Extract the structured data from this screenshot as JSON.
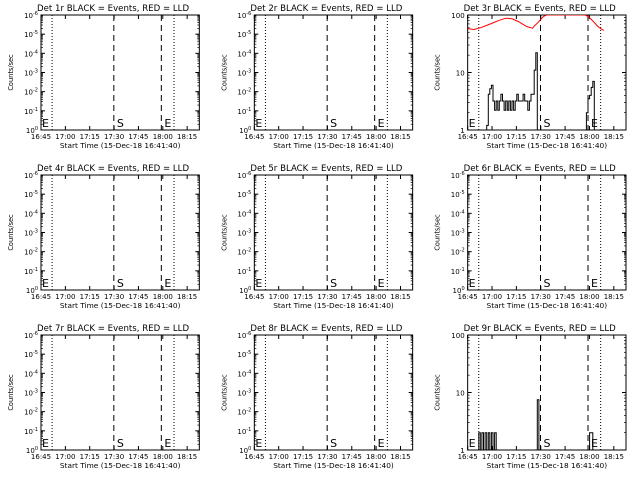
{
  "chart_data": [
    {
      "type": "line",
      "title": "Det 1r BLACK = Events, RED = LLD",
      "xlabel": "Start Time (15-Dec-18 16:41:40)",
      "ylabel": "Counts/sec",
      "x_ticks": [
        "16:45",
        "17:00",
        "17:15",
        "17:30",
        "17:45",
        "18:00",
        "18:15"
      ],
      "y_scale": "log",
      "y_ticks": [
        {
          "exp": "10",
          "sup": "0"
        },
        {
          "exp": "10",
          "sup": "-1"
        },
        {
          "exp": "10",
          "sup": "-2"
        },
        {
          "exp": "10",
          "sup": "-3"
        },
        {
          "exp": "10",
          "sup": "-4"
        },
        {
          "exp": "10",
          "sup": "-5"
        },
        {
          "exp": "10",
          "sup": "-6"
        }
      ],
      "ylim": [
        1,
        1000000
      ],
      "xlim": [
        0,
        100
      ],
      "dotted_lines_x": [
        7,
        84
      ],
      "dashed_lines_x": [
        46,
        76
      ],
      "markers": [
        {
          "label": "E",
          "x": 0
        },
        {
          "label": "S",
          "x": 46
        },
        {
          "label": "E",
          "x": 76
        }
      ],
      "series": []
    },
    {
      "type": "line",
      "title": "Det 2r BLACK = Events, RED = LLD",
      "xlabel": "Start Time (15-Dec-18 16:41:40)",
      "ylabel": "Counts/sec",
      "x_ticks": [
        "16:45",
        "17:00",
        "17:15",
        "17:30",
        "17:45",
        "18:00",
        "18:15"
      ],
      "y_scale": "log",
      "y_ticks": [
        {
          "exp": "10",
          "sup": "0"
        },
        {
          "exp": "10",
          "sup": "-1"
        },
        {
          "exp": "10",
          "sup": "-2"
        },
        {
          "exp": "10",
          "sup": "-3"
        },
        {
          "exp": "10",
          "sup": "-4"
        },
        {
          "exp": "10",
          "sup": "-5"
        },
        {
          "exp": "10",
          "sup": "-6"
        }
      ],
      "ylim": [
        1,
        1000000
      ],
      "xlim": [
        0,
        100
      ],
      "dotted_lines_x": [
        7,
        84
      ],
      "dashed_lines_x": [
        46,
        76
      ],
      "markers": [
        {
          "label": "E",
          "x": 0
        },
        {
          "label": "S",
          "x": 46
        },
        {
          "label": "E",
          "x": 76
        }
      ],
      "series": []
    },
    {
      "type": "line",
      "title": "Det 3r BLACK = Events, RED = LLD",
      "xlabel": "Start Time (15-Dec-18 16:41:40)",
      "ylabel": "Counts/sec",
      "x_ticks": [
        "16:45",
        "17:00",
        "17:15",
        "17:30",
        "17:45",
        "18:00",
        "18:15"
      ],
      "y_scale": "log",
      "y_ticks": [
        {
          "exp": "1",
          "sup": ""
        },
        {
          "exp": "10",
          "sup": ""
        },
        {
          "exp": "100",
          "sup": ""
        }
      ],
      "ylim": [
        1,
        100
      ],
      "xlim": [
        0,
        100
      ],
      "dotted_lines_x": [
        7,
        84
      ],
      "dashed_lines_x": [
        46,
        76
      ],
      "markers": [
        {
          "label": "E",
          "x": 0
        },
        {
          "label": "S",
          "x": 46
        },
        {
          "label": "E",
          "x": 76
        }
      ],
      "series": [
        {
          "color": "#ff0000",
          "points": [
            [
              0,
              58
            ],
            [
              4,
              56
            ],
            [
              8,
              60
            ],
            [
              12,
              66
            ],
            [
              16,
              73
            ],
            [
              20,
              81
            ],
            [
              24,
              88
            ],
            [
              28,
              86
            ],
            [
              32,
              77
            ],
            [
              36,
              66
            ],
            [
              38,
              62
            ],
            [
              40,
              60
            ],
            [
              41,
              59
            ],
            [
              42,
              64
            ],
            [
              44,
              72
            ],
            [
              46,
              83
            ],
            [
              48,
              95
            ],
            [
              50,
              100
            ],
            [
              74,
              100
            ],
            [
              76,
              95
            ],
            [
              78,
              84
            ],
            [
              80,
              74
            ],
            [
              82,
              64
            ],
            [
              84,
              58
            ],
            [
              86,
              54
            ]
          ]
        },
        {
          "color": "#000000",
          "points": [
            [
              0,
              1
            ],
            [
              12,
              1
            ],
            [
              12,
              1.2
            ],
            [
              13,
              1.2
            ],
            [
              13,
              4.2
            ],
            [
              14,
              4.2
            ],
            [
              14,
              5.2
            ],
            [
              15,
              5.2
            ],
            [
              15,
              6
            ],
            [
              16,
              6
            ],
            [
              16,
              3.2
            ],
            [
              17,
              3.2
            ],
            [
              17,
              2.2
            ],
            [
              18,
              2.2
            ],
            [
              18,
              3.2
            ],
            [
              19,
              3.2
            ],
            [
              19,
              2.2
            ],
            [
              20,
              2.2
            ],
            [
              20,
              3.2
            ],
            [
              21,
              3.2
            ],
            [
              21,
              4.2
            ],
            [
              22,
              4.2
            ],
            [
              22,
              3.2
            ],
            [
              23,
              3.2
            ],
            [
              23,
              2.2
            ],
            [
              24,
              2.2
            ],
            [
              24,
              3.2
            ],
            [
              25,
              3.2
            ],
            [
              25,
              2.2
            ],
            [
              26,
              2.2
            ],
            [
              26,
              3.2
            ],
            [
              27,
              3.2
            ],
            [
              27,
              2.2
            ],
            [
              28,
              2.2
            ],
            [
              28,
              3.2
            ],
            [
              29,
              3.2
            ],
            [
              29,
              2.2
            ],
            [
              30,
              2.2
            ],
            [
              30,
              3.2
            ],
            [
              31,
              3.2
            ],
            [
              31,
              4.2
            ],
            [
              32,
              4.2
            ],
            [
              32,
              3.2
            ],
            [
              35,
              3.2
            ],
            [
              35,
              4.2
            ],
            [
              36,
              4.2
            ],
            [
              36,
              3.2
            ],
            [
              38,
              3.2
            ],
            [
              38,
              2.2
            ],
            [
              39,
              2.2
            ],
            [
              39,
              3.2
            ],
            [
              40,
              3.2
            ],
            [
              40,
              4.2
            ],
            [
              41,
              4.2
            ],
            [
              41,
              4.2
            ],
            [
              42,
              4.2
            ],
            [
              42,
              11
            ],
            [
              43,
              11
            ],
            [
              43,
              22
            ],
            [
              44,
              22
            ],
            [
              44,
              1
            ],
            [
              75,
              1
            ],
            [
              75,
              2
            ],
            [
              76,
              2
            ],
            [
              76,
              3.5
            ],
            [
              77,
              3.5
            ],
            [
              77,
              4
            ],
            [
              78,
              4
            ],
            [
              78,
              5.5
            ],
            [
              79,
              5.5
            ],
            [
              79,
              7
            ],
            [
              80,
              7
            ],
            [
              80,
              1
            ],
            [
              100,
              1
            ]
          ]
        }
      ]
    },
    {
      "type": "line",
      "title": "Det 4r BLACK = Events, RED = LLD",
      "xlabel": "Start Time (15-Dec-18 16:41:40)",
      "ylabel": "Counts/sec",
      "x_ticks": [
        "16:45",
        "17:00",
        "17:15",
        "17:30",
        "17:45",
        "18:00",
        "18:15"
      ],
      "y_scale": "log",
      "y_ticks": [
        {
          "exp": "10",
          "sup": "0"
        },
        {
          "exp": "10",
          "sup": "-1"
        },
        {
          "exp": "10",
          "sup": "-2"
        },
        {
          "exp": "10",
          "sup": "-3"
        },
        {
          "exp": "10",
          "sup": "-4"
        },
        {
          "exp": "10",
          "sup": "-5"
        },
        {
          "exp": "10",
          "sup": "-6"
        }
      ],
      "ylim": [
        1,
        1000000
      ],
      "xlim": [
        0,
        100
      ],
      "dotted_lines_x": [
        7,
        84
      ],
      "dashed_lines_x": [
        46,
        76
      ],
      "markers": [
        {
          "label": "E",
          "x": 0
        },
        {
          "label": "S",
          "x": 46
        },
        {
          "label": "E",
          "x": 76
        }
      ],
      "series": []
    },
    {
      "type": "line",
      "title": "Det 5r BLACK = Events, RED = LLD",
      "xlabel": "Start Time (15-Dec-18 16:41:40)",
      "ylabel": "Counts/sec",
      "x_ticks": [
        "16:45",
        "17:00",
        "17:15",
        "17:30",
        "17:45",
        "18:00",
        "18:15"
      ],
      "y_scale": "log",
      "y_ticks": [
        {
          "exp": "10",
          "sup": "0"
        },
        {
          "exp": "10",
          "sup": "-1"
        },
        {
          "exp": "10",
          "sup": "-2"
        },
        {
          "exp": "10",
          "sup": "-3"
        },
        {
          "exp": "10",
          "sup": "-4"
        },
        {
          "exp": "10",
          "sup": "-5"
        },
        {
          "exp": "10",
          "sup": "-6"
        }
      ],
      "ylim": [
        1,
        1000000
      ],
      "xlim": [
        0,
        100
      ],
      "dotted_lines_x": [
        7,
        84
      ],
      "dashed_lines_x": [
        46,
        76
      ],
      "markers": [
        {
          "label": "E",
          "x": 0
        },
        {
          "label": "S",
          "x": 46
        },
        {
          "label": "E",
          "x": 76
        }
      ],
      "series": []
    },
    {
      "type": "line",
      "title": "Det 6r BLACK = Events, RED = LLD",
      "xlabel": "Start Time (15-Dec-18 16:41:40)",
      "ylabel": "Counts/sec",
      "x_ticks": [
        "16:45",
        "17:00",
        "17:15",
        "17:30",
        "17:45",
        "18:00",
        "18:15"
      ],
      "y_scale": "log",
      "y_ticks": [
        {
          "exp": "10",
          "sup": "0"
        },
        {
          "exp": "10",
          "sup": "-1"
        },
        {
          "exp": "10",
          "sup": "-2"
        },
        {
          "exp": "10",
          "sup": "-3"
        },
        {
          "exp": "10",
          "sup": "-4"
        },
        {
          "exp": "10",
          "sup": "-5"
        },
        {
          "exp": "10",
          "sup": "-6"
        }
      ],
      "ylim": [
        1,
        1000000
      ],
      "xlim": [
        0,
        100
      ],
      "dotted_lines_x": [
        7,
        84
      ],
      "dashed_lines_x": [
        46,
        76
      ],
      "markers": [
        {
          "label": "E",
          "x": 0
        },
        {
          "label": "S",
          "x": 46
        },
        {
          "label": "E",
          "x": 76
        }
      ],
      "series": []
    },
    {
      "type": "line",
      "title": "Det 7r BLACK = Events, RED = LLD",
      "xlabel": "Start Time (15-Dec-18 16:41:40)",
      "ylabel": "Counts/sec",
      "x_ticks": [
        "16:45",
        "17:00",
        "17:15",
        "17:30",
        "17:45",
        "18:00",
        "18:15"
      ],
      "y_scale": "log",
      "y_ticks": [
        {
          "exp": "10",
          "sup": "0"
        },
        {
          "exp": "10",
          "sup": "-1"
        },
        {
          "exp": "10",
          "sup": "-2"
        },
        {
          "exp": "10",
          "sup": "-3"
        },
        {
          "exp": "10",
          "sup": "-4"
        },
        {
          "exp": "10",
          "sup": "-5"
        },
        {
          "exp": "10",
          "sup": "-6"
        }
      ],
      "ylim": [
        1,
        1000000
      ],
      "xlim": [
        0,
        100
      ],
      "dotted_lines_x": [
        7,
        84
      ],
      "dashed_lines_x": [
        46,
        76
      ],
      "markers": [
        {
          "label": "E",
          "x": 0
        },
        {
          "label": "S",
          "x": 46
        },
        {
          "label": "E",
          "x": 76
        }
      ],
      "series": []
    },
    {
      "type": "line",
      "title": "Det 8r BLACK = Events, RED = LLD",
      "xlabel": "Start Time (15-Dec-18 16:41:40)",
      "ylabel": "Counts/sec",
      "x_ticks": [
        "16:45",
        "17:00",
        "17:15",
        "17:30",
        "17:45",
        "18:00",
        "18:15"
      ],
      "y_scale": "log",
      "y_ticks": [
        {
          "exp": "10",
          "sup": "0"
        },
        {
          "exp": "10",
          "sup": "-1"
        },
        {
          "exp": "10",
          "sup": "-2"
        },
        {
          "exp": "10",
          "sup": "-3"
        },
        {
          "exp": "10",
          "sup": "-4"
        },
        {
          "exp": "10",
          "sup": "-5"
        },
        {
          "exp": "10",
          "sup": "-6"
        }
      ],
      "ylim": [
        1,
        1000000
      ],
      "xlim": [
        0,
        100
      ],
      "dotted_lines_x": [
        7,
        84
      ],
      "dashed_lines_x": [
        46,
        76
      ],
      "markers": [
        {
          "label": "E",
          "x": 0
        },
        {
          "label": "S",
          "x": 46
        },
        {
          "label": "E",
          "x": 76
        }
      ],
      "series": []
    },
    {
      "type": "line",
      "title": "Det 9r BLACK = Events, RED = LLD",
      "xlabel": "Start Time (15-Dec-18 16:41:40)",
      "ylabel": "Counts/sec",
      "x_ticks": [
        "16:45",
        "17:00",
        "17:15",
        "17:30",
        "17:45",
        "18:00",
        "18:15"
      ],
      "y_scale": "log",
      "y_ticks": [
        {
          "exp": "1",
          "sup": ""
        },
        {
          "exp": "10",
          "sup": ""
        },
        {
          "exp": "100",
          "sup": ""
        }
      ],
      "ylim": [
        1,
        100
      ],
      "xlim": [
        0,
        100
      ],
      "dotted_lines_x": [
        7,
        84
      ],
      "dashed_lines_x": [
        46,
        76
      ],
      "markers": [
        {
          "label": "E",
          "x": 0
        },
        {
          "label": "S",
          "x": 46
        },
        {
          "label": "E",
          "x": 76
        }
      ],
      "series": [
        {
          "color": "#000000",
          "points": [
            [
              0,
              1
            ],
            [
              7,
              1
            ],
            [
              7,
              2
            ],
            [
              8,
              2
            ],
            [
              8,
              1
            ],
            [
              9,
              1
            ],
            [
              9,
              2
            ],
            [
              10,
              2
            ],
            [
              10,
              1
            ],
            [
              11,
              1
            ],
            [
              11,
              2
            ],
            [
              12,
              2
            ],
            [
              12,
              1
            ],
            [
              13,
              1
            ],
            [
              13,
              2
            ],
            [
              14,
              2
            ],
            [
              14,
              1
            ],
            [
              15,
              1
            ],
            [
              15,
              2
            ],
            [
              16,
              2
            ],
            [
              16,
              1
            ],
            [
              17,
              1
            ],
            [
              17,
              2
            ],
            [
              18,
              2
            ],
            [
              18,
              1
            ],
            [
              44,
              1
            ],
            [
              44,
              7.5
            ],
            [
              45,
              7.5
            ],
            [
              45,
              1
            ],
            [
              77,
              1
            ],
            [
              77,
              2
            ],
            [
              79,
              2
            ],
            [
              79,
              1
            ],
            [
              100,
              1
            ]
          ]
        }
      ]
    }
  ]
}
